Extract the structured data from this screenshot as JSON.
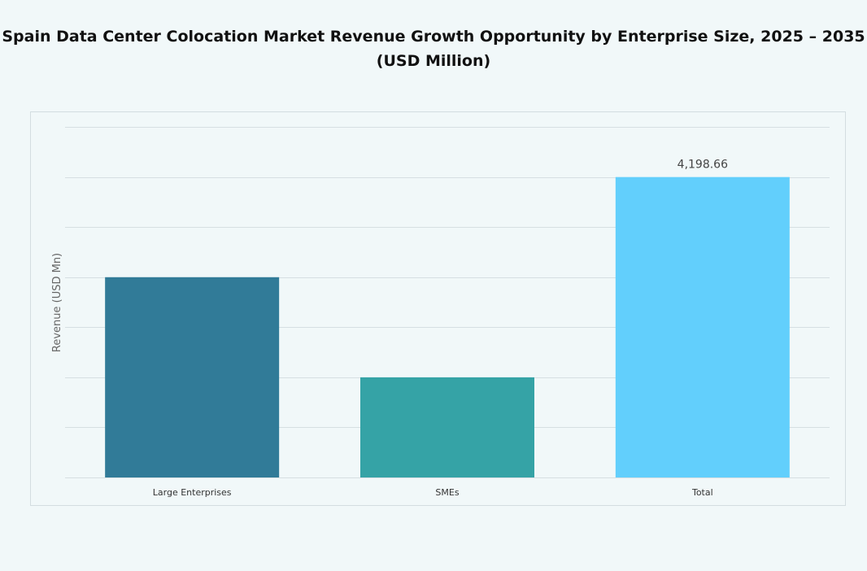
{
  "chart_data": {
    "type": "bar",
    "title": "Spain Data Center Colocation Market Revenue Growth Opportunity by Enterprise Size, 2025 – 2035",
    "subtitle": "(USD Million)",
    "xlabel": "",
    "ylabel": "Revenue (USD Mn)",
    "categories": [
      "Large Enterprises",
      "SMEs",
      "Total"
    ],
    "values": [
      2799.1,
      1399.6,
      4198.66
    ],
    "data_labels": [
      "",
      "",
      "4,198.66"
    ],
    "ylim": [
      0,
      4900
    ],
    "grid": true,
    "y_tick_labels_shown": false,
    "colors": [
      "#317b98",
      "#35a3a6",
      "#62cffc"
    ]
  }
}
